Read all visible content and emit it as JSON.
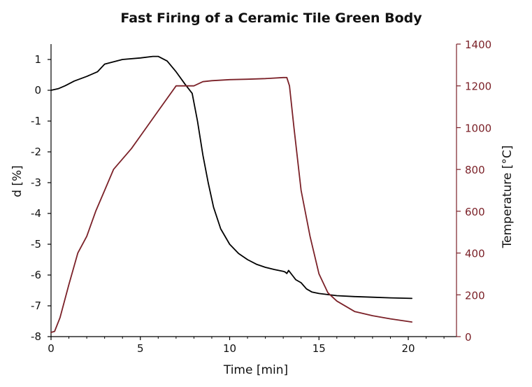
{
  "chart_data": {
    "type": "line",
    "title": "Fast Firing of a Ceramic Tile Green Body",
    "xlabel": "Time [min]",
    "ylabel": "d [%]",
    "y2label": "Temperature [°C]",
    "xlim": [
      0,
      22.7
    ],
    "ylim": [
      -8,
      1.5
    ],
    "y2lim": [
      0,
      1400
    ],
    "xticks": [
      0,
      5,
      10,
      15,
      20
    ],
    "yticks": [
      1,
      0,
      -1,
      -2,
      -3,
      -4,
      -5,
      -6,
      -7,
      -8
    ],
    "y2ticks": [
      1400,
      1200,
      1000,
      800,
      600,
      400,
      200,
      0
    ],
    "grid": false,
    "legend": "none",
    "colors": {
      "d": "#000000",
      "temperature": "#7b2128",
      "axis": "#000000",
      "axis2": "#7b2128"
    },
    "series": [
      {
        "axis": "left",
        "x": [
          0,
          0.4,
          0.8,
          1.3,
          2.0,
          2.6,
          3.0,
          4.0,
          5.0,
          5.7,
          6.0,
          6.5,
          7.0,
          7.5,
          7.9,
          8.2,
          8.5,
          8.8,
          9.1,
          9.5,
          10.0,
          10.5,
          11.0,
          11.5,
          12.0,
          12.5,
          13.0,
          13.1,
          13.2,
          13.3,
          13.5,
          13.7,
          14.0,
          14.3,
          14.6,
          15.0,
          16.0,
          17.0,
          18.0,
          19.0,
          20.2
        ],
        "values": [
          0.0,
          0.05,
          0.15,
          0.3,
          0.45,
          0.6,
          0.85,
          1.0,
          1.05,
          1.1,
          1.1,
          0.95,
          0.6,
          0.2,
          -0.1,
          -1.0,
          -2.1,
          -3.0,
          -3.8,
          -4.5,
          -5.0,
          -5.3,
          -5.5,
          -5.65,
          -5.75,
          -5.82,
          -5.88,
          -5.9,
          -5.95,
          -5.85,
          -6.0,
          -6.15,
          -6.25,
          -6.45,
          -6.55,
          -6.6,
          -6.67,
          -6.7,
          -6.72,
          -6.74,
          -6.76
        ]
      },
      {
        "axis": "right",
        "x": [
          0,
          0.2,
          0.5,
          1.0,
          1.5,
          2.0,
          2.5,
          3.0,
          3.5,
          4.0,
          4.5,
          5.0,
          6.0,
          7.0,
          8.0,
          8.5,
          9.0,
          10.0,
          11.0,
          12.0,
          13.0,
          13.2,
          13.35,
          13.6,
          14.0,
          14.5,
          15.0,
          15.5,
          16.0,
          17.0,
          18.0,
          19.0,
          20.2
        ],
        "values": [
          20,
          25,
          90,
          250,
          400,
          480,
          600,
          700,
          800,
          850,
          900,
          960,
          1080,
          1200,
          1200,
          1220,
          1225,
          1230,
          1232,
          1235,
          1240,
          1240,
          1200,
          1000,
          700,
          480,
          300,
          210,
          170,
          120,
          100,
          85,
          70
        ]
      }
    ]
  }
}
